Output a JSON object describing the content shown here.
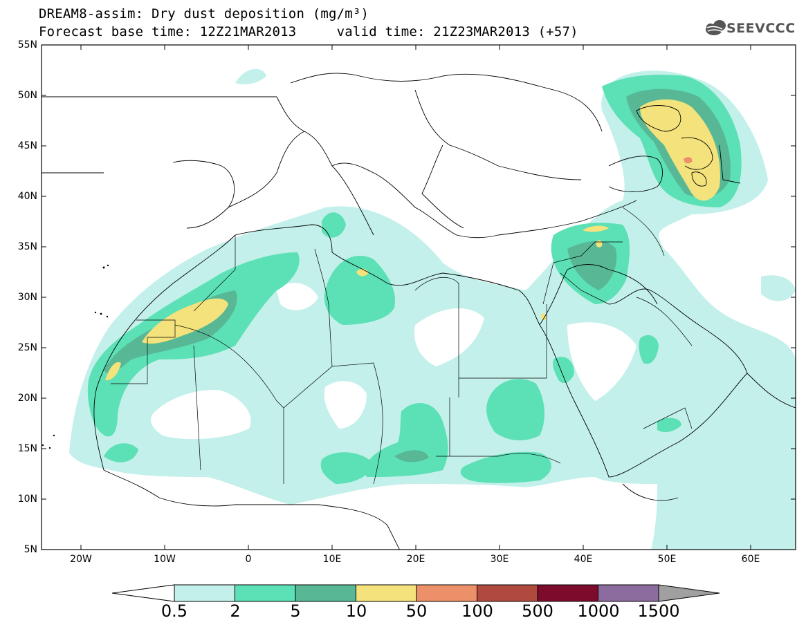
{
  "header": {
    "title_line1": "DREAM8-assim: Dry dust deposition (mg/m³)",
    "title_line2": "Forecast base time: 12Z21MAR2013     valid time: 21Z23MAR2013 (+57)",
    "logo_text": "SEEVCCC",
    "logo_icon": "cloud-icon"
  },
  "map": {
    "lat_labels": [
      "55N",
      "50N",
      "45N",
      "40N",
      "35N",
      "30N",
      "25N",
      "20N",
      "15N",
      "10N",
      "5N"
    ],
    "lon_labels": [
      "20W",
      "10W",
      "0",
      "10E",
      "20E",
      "30E",
      "40E",
      "50E",
      "60E"
    ]
  },
  "colorbar": {
    "labels": [
      "0.5",
      "2",
      "5",
      "10",
      "50",
      "100",
      "500",
      "1000",
      "1500"
    ],
    "colors": [
      "#c3f0ea",
      "#5ce0b6",
      "#58b896",
      "#f4e27c",
      "#eb9068",
      "#b04a3e",
      "#7c0b2c",
      "#8c6b9f",
      "#a0a0a0"
    ],
    "under_color": "#ffffff",
    "over_color": "#a0a0a0"
  }
}
